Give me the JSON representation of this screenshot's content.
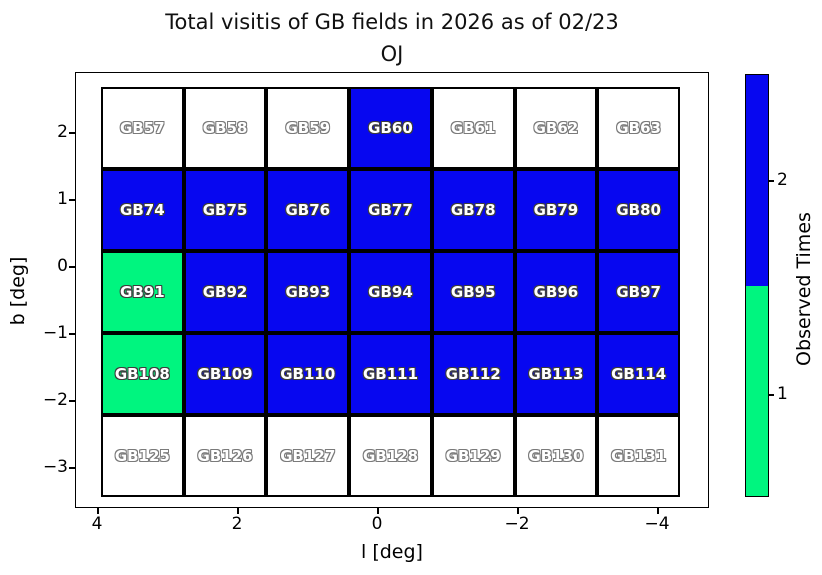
{
  "title": {
    "line1": "Total visitis of GB fields in 2026 as of 02/23",
    "line2": "OJ"
  },
  "chart_data": {
    "type": "heatmap",
    "title": "Total visitis of GB fields in 2026 as of 02/23\nOJ",
    "xlabel": "l [deg]",
    "ylabel": "b [deg]",
    "x_axis_reversed": true,
    "x_tick_labels": [
      "4",
      "2",
      "0",
      "−2",
      "−4"
    ],
    "y_tick_labels": [
      "2",
      "1",
      "0",
      "−1",
      "−2",
      "−3"
    ],
    "grid_on": false,
    "colors": {
      "observed_2": "#0707f0",
      "observed_1": "#00f57f",
      "unobserved": "#ffffff",
      "cell_border": "#000000"
    },
    "colorbar": {
      "label": "Observed Times",
      "position": "right",
      "tick_labels": [
        "2",
        "1"
      ],
      "segments": [
        {
          "value": 2,
          "color": "#0707f0"
        },
        {
          "value": 1,
          "color": "#00f57f"
        }
      ]
    },
    "grid": {
      "columns": 7,
      "rows": 5,
      "row_centers_b_deg": [
        2.1,
        0.9,
        -0.35,
        -1.6,
        -2.85
      ],
      "cells": [
        [
          {
            "label": "GB57",
            "visits": 0
          },
          {
            "label": "GB58",
            "visits": 0
          },
          {
            "label": "GB59",
            "visits": 0
          },
          {
            "label": "GB60",
            "visits": 2
          },
          {
            "label": "GB61",
            "visits": 0
          },
          {
            "label": "GB62",
            "visits": 0
          },
          {
            "label": "GB63",
            "visits": 0
          }
        ],
        [
          {
            "label": "GB74",
            "visits": 2
          },
          {
            "label": "GB75",
            "visits": 2
          },
          {
            "label": "GB76",
            "visits": 2
          },
          {
            "label": "GB77",
            "visits": 2
          },
          {
            "label": "GB78",
            "visits": 2
          },
          {
            "label": "GB79",
            "visits": 2
          },
          {
            "label": "GB80",
            "visits": 2
          }
        ],
        [
          {
            "label": "GB91",
            "visits": 1
          },
          {
            "label": "GB92",
            "visits": 2
          },
          {
            "label": "GB93",
            "visits": 2
          },
          {
            "label": "GB94",
            "visits": 2
          },
          {
            "label": "GB95",
            "visits": 2
          },
          {
            "label": "GB96",
            "visits": 2
          },
          {
            "label": "GB97",
            "visits": 2
          }
        ],
        [
          {
            "label": "GB108",
            "visits": 1
          },
          {
            "label": "GB109",
            "visits": 2
          },
          {
            "label": "GB110",
            "visits": 2
          },
          {
            "label": "GB111",
            "visits": 2
          },
          {
            "label": "GB112",
            "visits": 2
          },
          {
            "label": "GB113",
            "visits": 2
          },
          {
            "label": "GB114",
            "visits": 2
          }
        ],
        [
          {
            "label": "GB125",
            "visits": 0
          },
          {
            "label": "GB126",
            "visits": 0
          },
          {
            "label": "GB127",
            "visits": 0
          },
          {
            "label": "GB128",
            "visits": 0
          },
          {
            "label": "GB129",
            "visits": 0
          },
          {
            "label": "GB130",
            "visits": 0
          },
          {
            "label": "GB131",
            "visits": 0
          }
        ]
      ]
    }
  }
}
